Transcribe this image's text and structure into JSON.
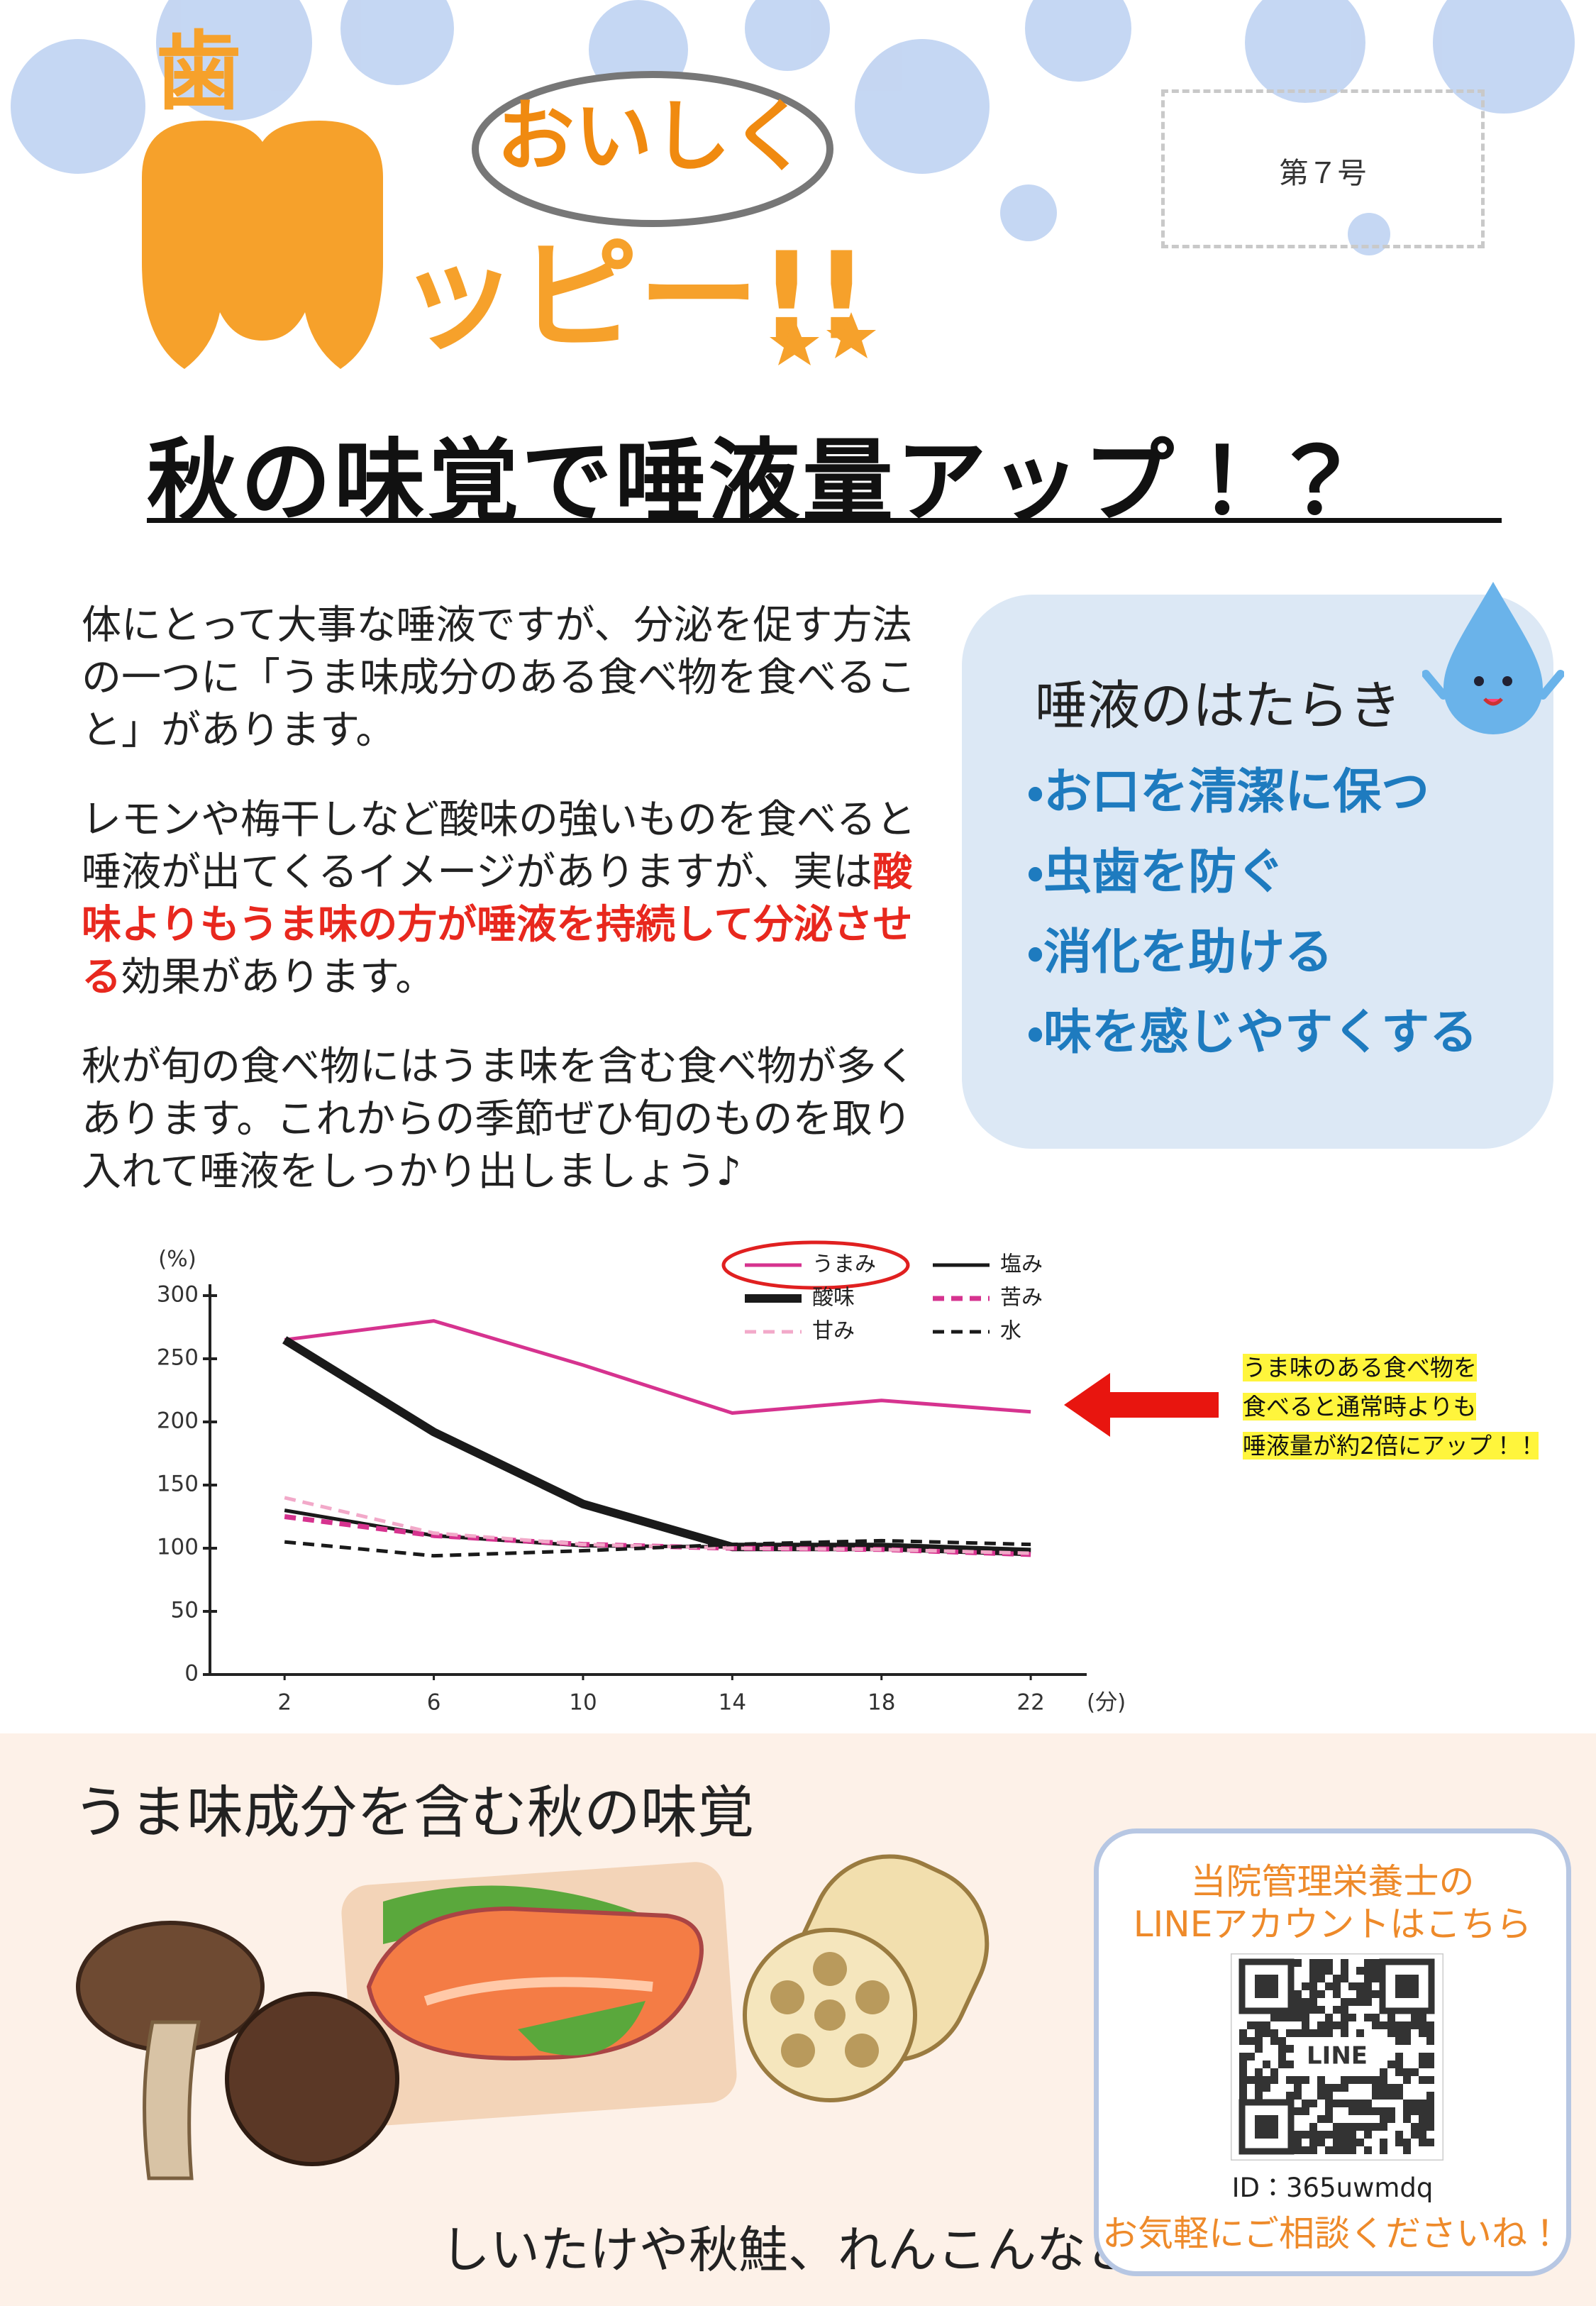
{
  "header": {
    "logo": {
      "tooth": "歯",
      "bubble": "おいしく",
      "text": "ッピー!!"
    },
    "issue": "第７号",
    "title": "秋の味覚で唾液量アップ！？"
  },
  "intro": {
    "paragraphs": [
      [
        {
          "text": "体にとって大事な唾液ですが、分泌を促す方法の一つに「うま味成分のある食べ物を食べること」があります。"
        }
      ],
      [
        {
          "text": "レモンや梅干しなど酸味の強いものを食べると唾液が出てくるイメージがありますが、実は"
        },
        {
          "text": "酸味よりもうま味の方が唾液を持続して分泌させる",
          "emphasis": true
        },
        {
          "text": "効果があります。"
        }
      ],
      [
        {
          "text": "秋が旬の食べ物にはうま味を含む食べ物が多くあります。これからの季節ぜひ旬のものを取り入れて唾液をしっかり出しましょう♪"
        }
      ]
    ]
  },
  "function_box": {
    "title": "唾液のはたらき",
    "items": [
      "・お口を清潔に保つ",
      "・虫歯を防ぐ",
      "・消化を助ける",
      "・味を感じやすくする"
    ]
  },
  "chart_data": {
    "type": "line",
    "y_unit": "(%)",
    "x_unit": "(分)",
    "x": [
      2,
      6,
      10,
      14,
      18,
      22
    ],
    "xlim": [
      0,
      23.5
    ],
    "xticks": [
      2,
      6,
      10,
      14,
      18,
      22
    ],
    "ylim": [
      0,
      300
    ],
    "yticks": [
      0,
      50,
      100,
      150,
      200,
      250,
      300
    ],
    "highlighted_series": 0,
    "series": [
      {
        "name": "うまみ",
        "color": "#d6338f",
        "dashed": false,
        "bold": false,
        "values": [
          265,
          280,
          245,
          207,
          217,
          208
        ]
      },
      {
        "name": "塩み",
        "color": "#1a1a1a",
        "dashed": false,
        "bold": false,
        "values": [
          130,
          110,
          102,
          101,
          100,
          98
        ]
      },
      {
        "name": "酸味",
        "color": "#1a1a1a",
        "dashed": false,
        "bold": true,
        "values": [
          265,
          192,
          135,
          101,
          101,
          97
        ]
      },
      {
        "name": "苦み",
        "color": "#d6338f",
        "dashed": true,
        "bold": false,
        "values": [
          125,
          110,
          103,
          100,
          99,
          95
        ]
      },
      {
        "name": "甘み",
        "color": "#f2a9c9",
        "dashed": true,
        "bold": false,
        "values": [
          140,
          112,
          103,
          100,
          99,
          96
        ]
      },
      {
        "name": "水",
        "color": "#1a1a1a",
        "dashed": true,
        "bold": false,
        "values": [
          105,
          94,
          98,
          103,
          106,
          103
        ]
      }
    ],
    "annotation": [
      "うま味のある食べ物を",
      "食べると通常時よりも",
      "唾液量が約2倍にアップ！！"
    ]
  },
  "autumn_section": {
    "title": "うま味成分を含む秋の味覚",
    "caption": "しいたけや秋鮭、れんこんなど"
  },
  "line_box": {
    "lines": [
      "当院管理栄養士の",
      "LINEアカウントはこちら"
    ],
    "qr_label": "LINE",
    "id": "ID：365uwmdq",
    "note": "お気軽にご相談くださいね！"
  }
}
